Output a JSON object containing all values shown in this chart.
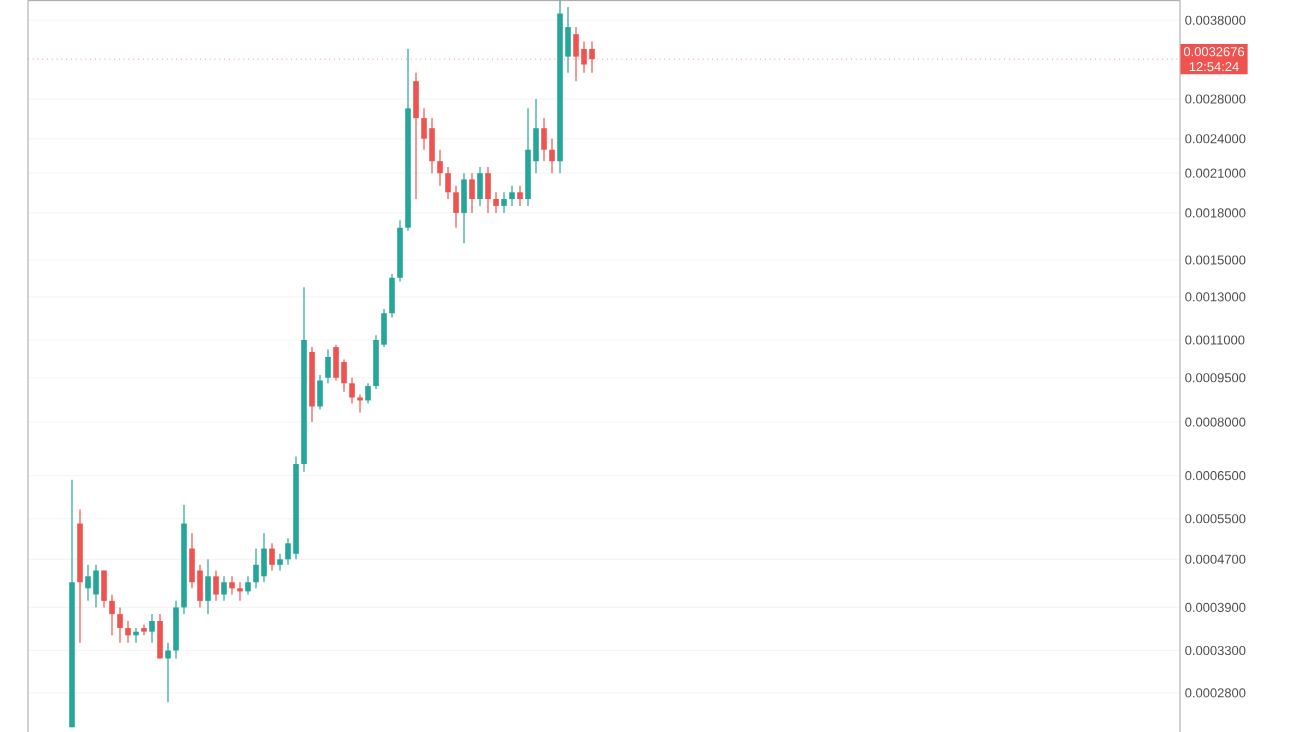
{
  "chart_data": {
    "type": "candlestick",
    "log": "y",
    "grid": "y",
    "tick_labels": "y",
    "categories": [
      null,
      null,
      null,
      null,
      null,
      null,
      null,
      null,
      null,
      null,
      null,
      null,
      null,
      null,
      null,
      null,
      null,
      null,
      null,
      null,
      null,
      null,
      null,
      null,
      null,
      null,
      null,
      null,
      null,
      null,
      null,
      null,
      null,
      null,
      null,
      null,
      null,
      null,
      null,
      null,
      null,
      null,
      null,
      null,
      null,
      null,
      null,
      null,
      null,
      null,
      null,
      null,
      null,
      null,
      null,
      null,
      null,
      null,
      null,
      null,
      null,
      null,
      null,
      null,
      null,
      null,
      null,
      null,
      null,
      null,
      null,
      null,
      null,
      null,
      null,
      null,
      null,
      null,
      null,
      null,
      null,
      null,
      null,
      null,
      null,
      null,
      null,
      null,
      null,
      null,
      null,
      null,
      null,
      null,
      null,
      null,
      null,
      null,
      null,
      null,
      null,
      null,
      null,
      null,
      null,
      null,
      null,
      null,
      null,
      null,
      null,
      null,
      null,
      null,
      null,
      null,
      null,
      null,
      null,
      null,
      null,
      null,
      null,
      null,
      null,
      null,
      null,
      null,
      null,
      null,
      null,
      null,
      null,
      null,
      null,
      null,
      null,
      null,
      null,
      null,
      null,
      null,
      null,
      null
    ],
    "ohlc": [
      null,
      null,
      null,
      null,
      null,
      [
        0.000245,
        0.00064,
        0.000245,
        0.00043
      ],
      [
        0.00054,
        0.00057,
        0.00034,
        0.00043
      ],
      [
        0.00042,
        0.00046,
        0.0004,
        0.00044
      ],
      [
        0.00041,
        0.00046,
        0.00039,
        0.00045
      ],
      [
        0.00045,
        0.00045,
        0.00039,
        0.0004
      ],
      [
        0.0004,
        0.00041,
        0.00035,
        0.00038
      ],
      [
        0.00038,
        0.00039,
        0.00034,
        0.00036
      ],
      [
        0.00036,
        0.00037,
        0.00034,
        0.00035
      ],
      [
        0.00035,
        0.00036,
        0.00034,
        0.000355
      ],
      [
        0.00036,
        0.000365,
        0.00035,
        0.000355
      ],
      [
        0.000355,
        0.00038,
        0.00034,
        0.00037
      ],
      [
        0.00037,
        0.00038,
        0.00032,
        0.00032
      ],
      [
        0.00032,
        0.00034,
        0.00027,
        0.00033
      ],
      [
        0.00033,
        0.0004,
        0.00032,
        0.00039
      ],
      [
        0.00039,
        0.00058,
        0.00038,
        0.00054
      ],
      [
        0.00049,
        0.00052,
        0.00042,
        0.00043
      ],
      [
        0.00045,
        0.00046,
        0.00039,
        0.0004
      ],
      [
        0.0004,
        0.00047,
        0.00038,
        0.00044
      ],
      [
        0.00044,
        0.00045,
        0.0004,
        0.00041
      ],
      [
        0.00041,
        0.00044,
        0.0004,
        0.00043
      ],
      [
        0.00043,
        0.00044,
        0.00041,
        0.00042
      ],
      [
        0.00042,
        0.00043,
        0.0004,
        0.000415
      ],
      [
        0.000415,
        0.00044,
        0.00041,
        0.00043
      ],
      [
        0.00043,
        0.00049,
        0.00042,
        0.00046
      ],
      [
        0.00044,
        0.00052,
        0.00043,
        0.00049
      ],
      [
        0.00049,
        0.0005,
        0.00045,
        0.00046
      ],
      [
        0.00046,
        0.00048,
        0.00045,
        0.00047
      ],
      [
        0.00047,
        0.00051,
        0.00046,
        0.0005
      ],
      [
        0.00048,
        0.0007,
        0.00047,
        0.00068
      ],
      [
        0.00068,
        0.00135,
        0.00066,
        0.0011
      ],
      [
        0.00105,
        0.00107,
        0.0008,
        0.00085
      ],
      [
        0.00085,
        0.00096,
        0.00084,
        0.00094
      ],
      [
        0.00095,
        0.00106,
        0.00093,
        0.00103
      ],
      [
        0.00107,
        0.00108,
        0.00094,
        0.00095
      ],
      [
        0.00101,
        0.00102,
        0.0009,
        0.00093
      ],
      [
        0.00093,
        0.00095,
        0.00086,
        0.00088
      ],
      [
        0.00088,
        0.00089,
        0.00083,
        0.00087
      ],
      [
        0.00087,
        0.00093,
        0.00086,
        0.00092
      ],
      [
        0.00092,
        0.00112,
        0.00091,
        0.0011
      ],
      [
        0.00108,
        0.00124,
        0.00107,
        0.00122
      ],
      [
        0.00122,
        0.00142,
        0.0012,
        0.0014
      ],
      [
        0.0014,
        0.00175,
        0.00138,
        0.0017
      ],
      [
        0.0017,
        0.0034,
        0.00168,
        0.0027
      ],
      [
        0.003,
        0.0031,
        0.0019,
        0.0026
      ],
      [
        0.0026,
        0.0027,
        0.0023,
        0.0024
      ],
      [
        0.0025,
        0.0026,
        0.0021,
        0.0022
      ],
      [
        0.0022,
        0.0023,
        0.002,
        0.0021
      ],
      [
        0.0021,
        0.00215,
        0.0019,
        0.00195
      ],
      [
        0.00195,
        0.002,
        0.0017,
        0.0018
      ],
      [
        0.0018,
        0.0021,
        0.0016,
        0.00205
      ],
      [
        0.00205,
        0.0021,
        0.0018,
        0.0019
      ],
      [
        0.0019,
        0.00215,
        0.00185,
        0.0021
      ],
      [
        0.0021,
        0.00215,
        0.0018,
        0.0019
      ],
      [
        0.0019,
        0.00195,
        0.0018,
        0.00185
      ],
      [
        0.00185,
        0.00195,
        0.0018,
        0.0019
      ],
      [
        0.0019,
        0.002,
        0.00185,
        0.00195
      ],
      [
        0.00195,
        0.002,
        0.00185,
        0.0019
      ],
      [
        0.0019,
        0.0027,
        0.00185,
        0.0023
      ],
      [
        0.0022,
        0.0028,
        0.0021,
        0.0025
      ],
      [
        0.0025,
        0.0026,
        0.0022,
        0.0023
      ],
      [
        0.0023,
        0.0024,
        0.0021,
        0.0022
      ],
      [
        0.0022,
        0.0041,
        0.0021,
        0.0039
      ],
      [
        0.0033,
        0.004,
        0.0031,
        0.0037
      ],
      [
        0.0036,
        0.0037,
        0.003,
        0.0033
      ],
      [
        0.0034,
        0.0035,
        0.0031,
        0.0032
      ],
      [
        0.0034,
        0.0035,
        0.0031,
        0.0032676
      ],
      null,
      null,
      null,
      null,
      null,
      null,
      null,
      null,
      null,
      null,
      null,
      null,
      null,
      null,
      null,
      null,
      null,
      null,
      null,
      null,
      null,
      null,
      null,
      null,
      null,
      null,
      null,
      null,
      null,
      null,
      null,
      null,
      null,
      null,
      null,
      null,
      null,
      null,
      null,
      null,
      null,
      null,
      null,
      null,
      null,
      null,
      null,
      null,
      null,
      null,
      null,
      null,
      null,
      null,
      null,
      null,
      null,
      null,
      null,
      null,
      null,
      null,
      null,
      null,
      null,
      null,
      null,
      null,
      null,
      null,
      null,
      null,
      null
    ],
    "colors": [
      null,
      null,
      null,
      null,
      null,
      "#26a69a",
      "#ef5350",
      "#26a69a",
      "#26a69a",
      "#ef5350",
      "#ef5350",
      "#ef5350",
      "#ef5350",
      "#26a69a",
      "#ef5350",
      "#26a69a",
      "#ef5350",
      "#26a69a",
      "#26a69a",
      "#26a69a",
      "#ef5350",
      "#ef5350",
      "#26a69a",
      "#ef5350",
      "#26a69a",
      "#ef5350",
      "#ef5350",
      "#26a69a",
      "#26a69a",
      "#26a69a",
      "#ef5350",
      "#26a69a",
      "#26a69a",
      "#26a69a",
      "#26a69a",
      "#ef5350",
      "#26a69a",
      "#26a69a",
      "#ef5350",
      "#ef5350",
      "#ef5350",
      "#ef5350",
      "#26a69a",
      "#26a69a",
      "#26a69a",
      "#26a69a",
      "#26a69a",
      "#26a69a",
      "#ef5350",
      "#ef5350",
      "#ef5350",
      "#ef5350",
      "#ef5350",
      "#ef5350",
      "#26a69a",
      "#ef5350",
      "#26a69a",
      "#ef5350",
      "#ef5350",
      "#26a69a",
      "#26a69a",
      "#ef5350",
      "#26a69a",
      "#26a69a",
      "#ef5350",
      "#ef5350",
      "#26a69a",
      "#26a69a",
      "#ef5350",
      "#ef5350",
      "#ef5350",
      null,
      null,
      null,
      null,
      null,
      null,
      null,
      null,
      null,
      null,
      null,
      null,
      null,
      null,
      null,
      null,
      null,
      null,
      null,
      null,
      null,
      null,
      null,
      null,
      null,
      null,
      null,
      null,
      null,
      null,
      null,
      null,
      null,
      null,
      null,
      null,
      null,
      null,
      null,
      null,
      null,
      null,
      null,
      null,
      null,
      null,
      null,
      null,
      null,
      null,
      null,
      null,
      null,
      null,
      null,
      null,
      null,
      null,
      null,
      null,
      null,
      null,
      null,
      null,
      null,
      null,
      null,
      null,
      null,
      null,
      null,
      null,
      null
    ],
    "ylim": [
      0.00024,
      0.0041
    ],
    "yticks": [
      {
        "value": 0.00028,
        "label": "0.0002800"
      },
      {
        "value": 0.00033,
        "label": "0.0003300"
      },
      {
        "value": 0.00039,
        "label": "0.0003900"
      },
      {
        "value": 0.00047,
        "label": "0.0004700"
      },
      {
        "value": 0.00055,
        "label": "0.0005500"
      },
      {
        "value": 0.00065,
        "label": "0.0006500"
      },
      {
        "value": 0.0008,
        "label": "0.0008000"
      },
      {
        "value": 0.00095,
        "label": "0.0009500"
      },
      {
        "value": 0.0011,
        "label": "0.0011000"
      },
      {
        "value": 0.0013,
        "label": "0.0013000"
      },
      {
        "value": 0.0015,
        "label": "0.0015000"
      },
      {
        "value": 0.0018,
        "label": "0.0018000"
      },
      {
        "value": 0.0021,
        "label": "0.0021000"
      },
      {
        "value": 0.0024,
        "label": "0.0024000"
      },
      {
        "value": 0.0028,
        "label": "0.0028000"
      },
      {
        "value": 0.0038,
        "label": "0.0038000"
      }
    ],
    "ref_lines": [
      {
        "axis": "y",
        "value": 0.0032676,
        "label": "0.0032676",
        "color": "#ef5350",
        "line_style": "dotted"
      }
    ],
    "annotations": [
      "12:54:24"
    ]
  }
}
